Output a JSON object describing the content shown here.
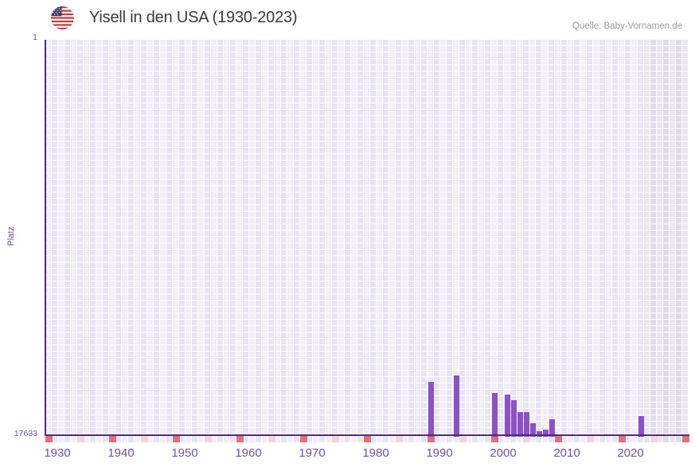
{
  "header": {
    "title": "Yisell in den USA (1930-2023)",
    "source": "Quelle: Baby-Vornamen.de"
  },
  "icons": {
    "title_flag": "us-flag-icon"
  },
  "chart_data": {
    "type": "bar",
    "title": "Yisell in den USA (1930-2023)",
    "xlabel": "",
    "ylabel": "Platz",
    "y_axis": {
      "min": 1,
      "max": 17633,
      "inverted": true,
      "top_tick_label": "1",
      "bottom_tick_label": "17633",
      "grid": true
    },
    "x_axis": {
      "grid_start_year": 1930,
      "grid_end_year": 2030,
      "data_end_year": 2023,
      "labeled_decades": [
        1930,
        1940,
        1950,
        1960,
        1970,
        1980,
        1990,
        2000,
        2010,
        2020
      ],
      "decade_tick_years": [
        1930,
        1940,
        1950,
        1960,
        1970,
        1980,
        1990,
        2000,
        2010,
        2020,
        2030
      ],
      "half_decade_tick_years": [
        1935,
        1945,
        1955,
        1965,
        1975,
        1985,
        1995,
        2005,
        2015,
        2025
      ]
    },
    "future_band": {
      "start_year": 2024,
      "end_year": 2030
    },
    "points": [
      {
        "year": 1990,
        "rank": 15340
      },
      {
        "year": 1994,
        "rank": 15060
      },
      {
        "year": 2000,
        "rank": 15850
      },
      {
        "year": 2002,
        "rank": 15920
      },
      {
        "year": 2003,
        "rank": 16170
      },
      {
        "year": 2004,
        "rank": 16680
      },
      {
        "year": 2005,
        "rank": 16680
      },
      {
        "year": 2006,
        "rank": 17190
      },
      {
        "year": 2007,
        "rank": 17540
      },
      {
        "year": 2008,
        "rank": 17470
      },
      {
        "year": 2009,
        "rank": 17000
      },
      {
        "year": 2023,
        "rank": 16860
      }
    ],
    "legend": null
  },
  "colors": {
    "bar": "#8c51c5",
    "axis": "#4f2a7e",
    "grid_light": "#f1eef9",
    "grid_dark": "#e9e4f4",
    "future_light": "#e9e6f1",
    "future_dark": "#dfdcea",
    "tick_red": "#e2707b",
    "tick_pink": "#f3d5de",
    "label_purple": "#7a4fa5",
    "title_color": "#3a3a3a",
    "source_color": "#9a9a9a",
    "flag_red": "#c53a3a",
    "flag_blue": "#3c3b6e"
  }
}
